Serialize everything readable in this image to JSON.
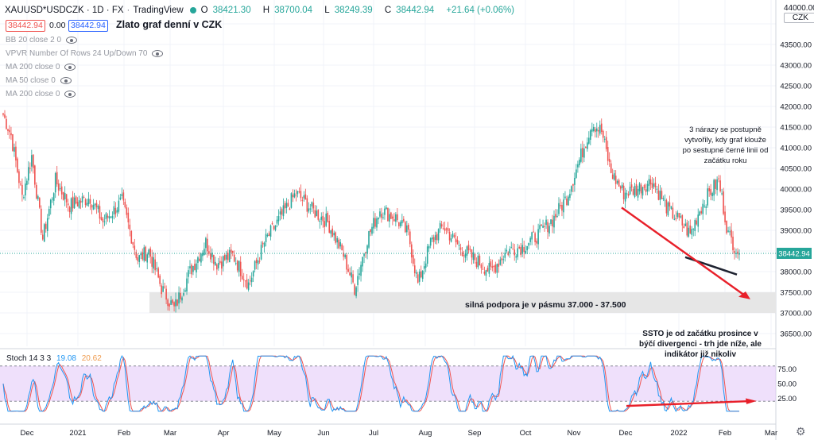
{
  "header": {
    "symbol": "XAUUSD*USDCZK · 1D · FX",
    "source": "TradingView",
    "ohlc": [
      {
        "k": "O",
        "v": "38421.30"
      },
      {
        "k": "H",
        "v": "38700.04"
      },
      {
        "k": "L",
        "v": "38249.39"
      },
      {
        "k": "C",
        "v": "38442.94"
      },
      {
        "k": "",
        "v": "+21.64 (+0.06%)"
      }
    ],
    "sell_price": "38442.94",
    "spread": "0.00",
    "buy_price": "38442.94",
    "chart_title": "Zlato graf denní v CZK",
    "corner_top": "44000.00",
    "corner_unit": "CZK"
  },
  "indicators": [
    "BB 20 close 2 0",
    "VPVR Number Of Rows 24 Up/Down 70",
    "MA 200 close 0",
    "MA 50 close 0",
    "MA 200 close 0"
  ],
  "stoch": {
    "label": "Stoch 14 3 3",
    "k_value": "19.08",
    "d_value": "20.62"
  },
  "annotations": {
    "support": "silná podpora je v pásmu 37.000 - 37.500",
    "note_top": [
      "3 nárazy se postupně",
      "vytvořily, kdy graf klouže",
      "po sestupné černé linii od",
      "začátku roku"
    ],
    "note_bottom": [
      "SSTO je od začátku prosince v",
      "býčí divergenci - trh jde níže, ale",
      "indikátor již nikoliv"
    ]
  },
  "colors": {
    "up": "#26a69a",
    "down": "#ef5350",
    "accent": "#2962ff",
    "stoch_fill": "#e1c6f7",
    "k_line": "#2196f3",
    "d_line": "#ef5350",
    "arrow": "#e8202a",
    "trendline": "#1e2230",
    "support_zone": "#e6e6e6"
  },
  "chart_data": {
    "type": "candlestick",
    "price_axis": {
      "min": 36500,
      "max": 44000,
      "step": 500
    },
    "last_price": 38442.94,
    "x_labels": [
      "Dec",
      "2021",
      "Feb",
      "Mar",
      "Apr",
      "May",
      "Jun",
      "Jul",
      "Aug",
      "Sep",
      "Oct",
      "Nov",
      "Dec",
      "2022",
      "Feb",
      "Mar"
    ],
    "support_zone": [
      37000,
      37500
    ],
    "stoch_axis": {
      "ticks": [
        75.0,
        50.0,
        25.0
      ],
      "upper_band": 80,
      "lower_band": 20
    },
    "keypoints": [
      [
        0,
        41800
      ],
      [
        5,
        41300
      ],
      [
        12,
        39800
      ],
      [
        18,
        40800
      ],
      [
        25,
        38800
      ],
      [
        33,
        40200
      ],
      [
        42,
        39600
      ],
      [
        55,
        39800
      ],
      [
        63,
        39200
      ],
      [
        75,
        39700
      ],
      [
        85,
        38300
      ],
      [
        92,
        38500
      ],
      [
        100,
        37600
      ],
      [
        108,
        37100
      ],
      [
        118,
        38000
      ],
      [
        128,
        38700
      ],
      [
        135,
        38200
      ],
      [
        145,
        38400
      ],
      [
        155,
        37700
      ],
      [
        165,
        38700
      ],
      [
        175,
        39300
      ],
      [
        185,
        39900
      ],
      [
        195,
        39500
      ],
      [
        205,
        39200
      ],
      [
        215,
        38400
      ],
      [
        222,
        37600
      ],
      [
        230,
        38800
      ],
      [
        238,
        39500
      ],
      [
        248,
        39300
      ],
      [
        256,
        38900
      ],
      [
        262,
        37700
      ],
      [
        270,
        38700
      ],
      [
        278,
        39100
      ],
      [
        288,
        38600
      ],
      [
        298,
        38300
      ],
      [
        308,
        38000
      ],
      [
        318,
        38500
      ],
      [
        328,
        38600
      ],
      [
        338,
        38900
      ],
      [
        348,
        39300
      ],
      [
        356,
        39800
      ],
      [
        364,
        40700
      ],
      [
        372,
        41600
      ],
      [
        378,
        41400
      ],
      [
        384,
        40400
      ],
      [
        392,
        39900
      ],
      [
        400,
        40000
      ],
      [
        410,
        40200
      ],
      [
        420,
        39500
      ],
      [
        428,
        39200
      ],
      [
        434,
        38900
      ],
      [
        440,
        39500
      ],
      [
        446,
        39900
      ],
      [
        452,
        40200
      ],
      [
        458,
        38900
      ],
      [
        465,
        38442
      ]
    ]
  }
}
